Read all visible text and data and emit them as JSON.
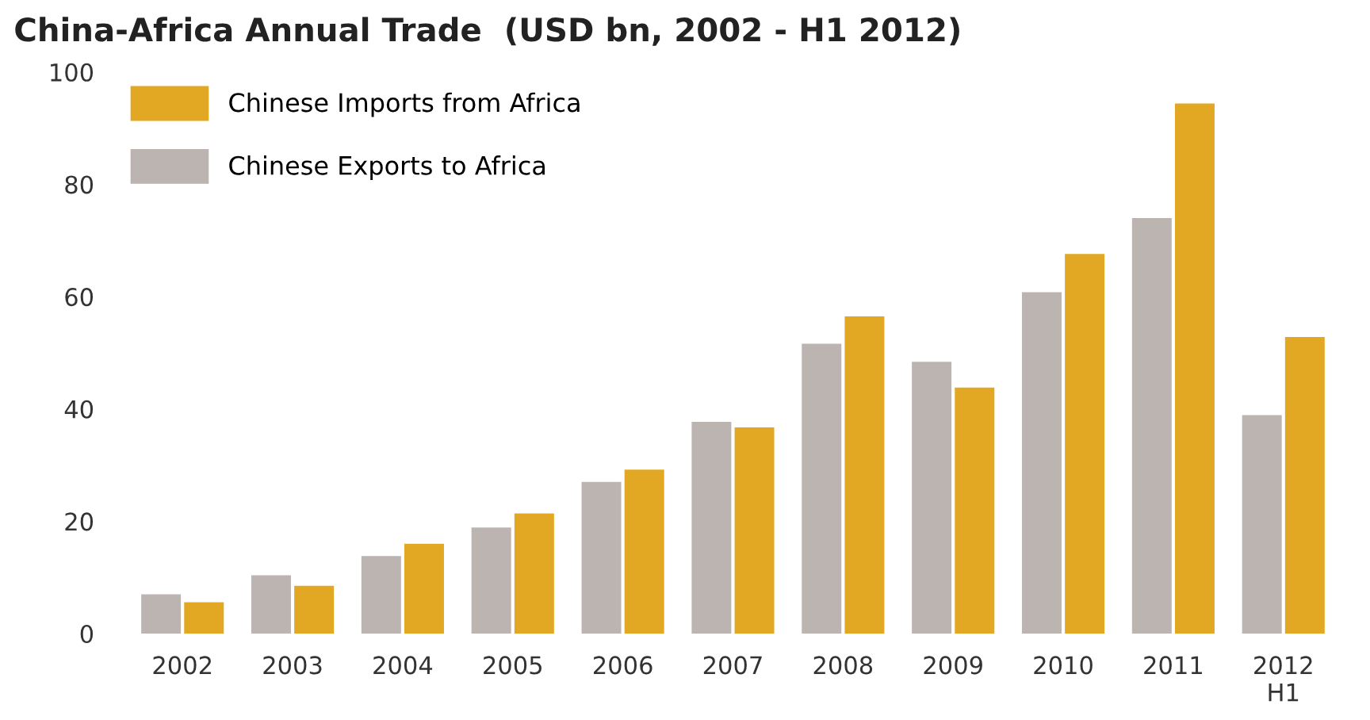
{
  "chart_data": {
    "type": "bar",
    "title": "China-Africa Annual Trade  (USD bn, 2002 - H1 2012)",
    "categories": [
      "2002",
      "2003",
      "2004",
      "2005",
      "2006",
      "2007",
      "2008",
      "2009",
      "2010",
      "2011",
      "2012\nH1"
    ],
    "series": [
      {
        "name": "Chinese Imports from Africa",
        "color": "#e3a823",
        "values": [
          5.6,
          8.5,
          16.0,
          21.4,
          29.2,
          36.7,
          56.5,
          43.8,
          67.6,
          94.4,
          52.8
        ]
      },
      {
        "name": "Chinese Exports to Africa",
        "color": "#bcb4b0",
        "values": [
          7.0,
          10.4,
          13.8,
          18.9,
          27.0,
          37.7,
          51.6,
          48.4,
          60.8,
          74.0,
          38.9
        ]
      }
    ],
    "ylim": [
      0,
      100
    ],
    "yticks": [
      0,
      20,
      40,
      60,
      80,
      100
    ],
    "grid": false,
    "legend": "top left"
  }
}
